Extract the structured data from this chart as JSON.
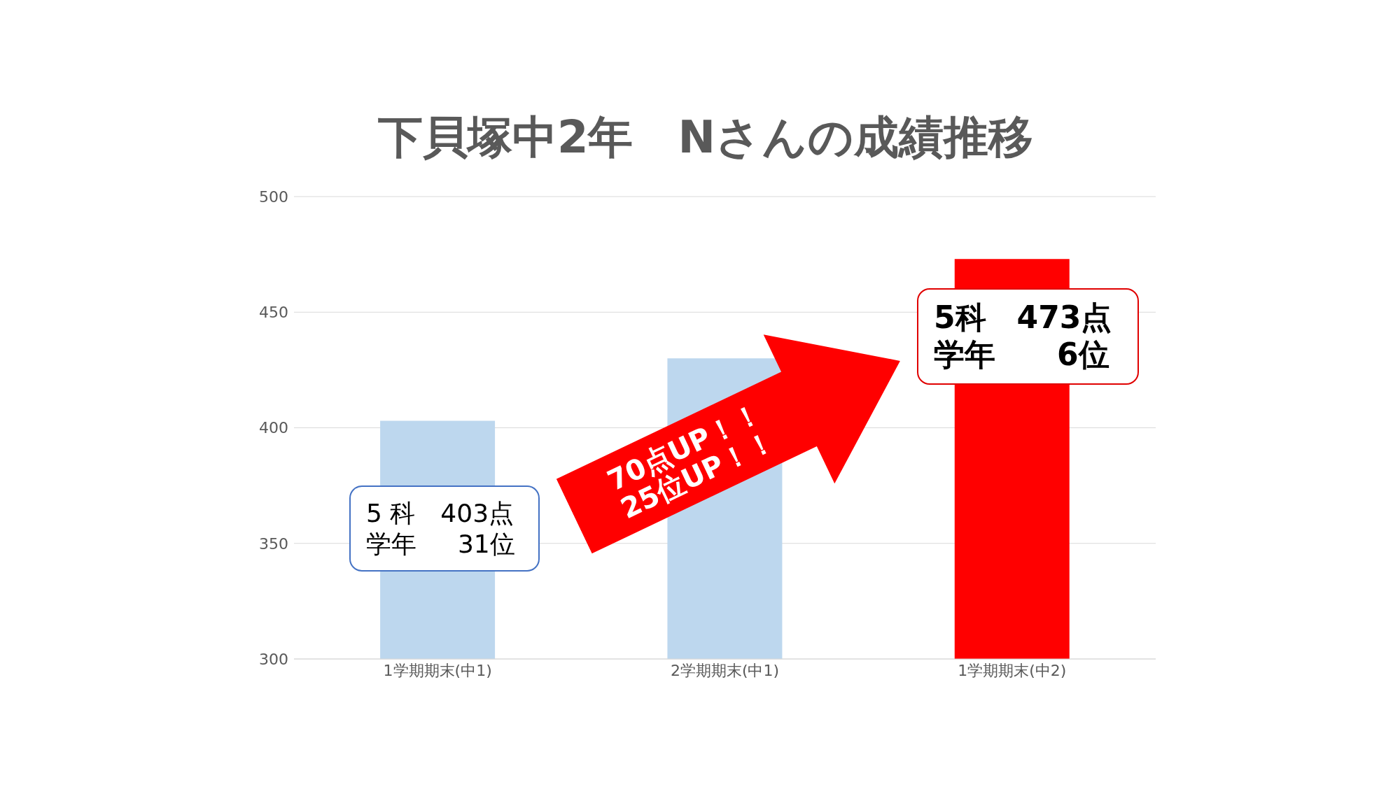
{
  "chart_data": {
    "type": "bar",
    "title": "下貝塚中2年　Nさんの成績推移",
    "categories": [
      "1学期期末(中1)",
      "2学期期末(中1)",
      "1学期期末(中2)"
    ],
    "values": [
      403,
      430,
      473
    ],
    "colors": [
      "#bdd7ee",
      "#bdd7ee",
      "#ff0000"
    ],
    "ylim": [
      300,
      500
    ],
    "yticks": [
      300,
      350,
      400,
      450,
      500
    ],
    "grid": "y",
    "annotations": [
      "5 科　403点",
      "学年　  31位",
      "70点UP！！",
      "25位UP！！",
      "5科　473点",
      "学年　　6位"
    ]
  }
}
